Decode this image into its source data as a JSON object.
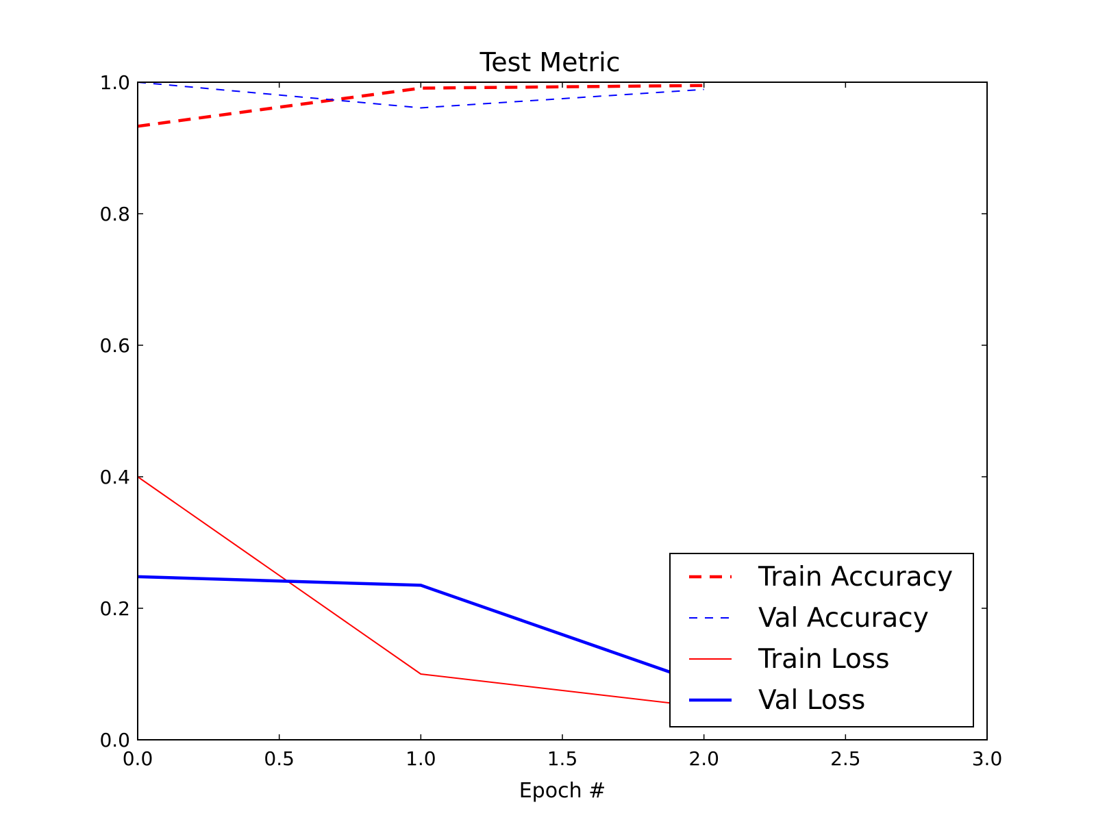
{
  "chart_data": {
    "type": "line",
    "title": "Test Metric",
    "xlabel": "Epoch #",
    "ylabel": "",
    "xlim": [
      0.0,
      3.0
    ],
    "ylim": [
      0.0,
      1.0
    ],
    "xticks": [
      "0.0",
      "0.5",
      "1.0",
      "1.5",
      "2.0",
      "2.5",
      "3.0"
    ],
    "yticks": [
      "0.0",
      "0.2",
      "0.4",
      "0.6",
      "0.8",
      "1.0"
    ],
    "grid": false,
    "legend_position": "lower-right",
    "x": [
      0,
      1,
      2
    ],
    "series": [
      {
        "name": "Train Accuracy",
        "values": [
          0.933,
          0.991,
          0.995
        ],
        "color": "#ff0000",
        "style": "dashed",
        "weight": "thick"
      },
      {
        "name": "Val Accuracy",
        "values": [
          1.0,
          0.961,
          0.989
        ],
        "color": "#0000ff",
        "style": "dashed",
        "weight": "thin"
      },
      {
        "name": "Train Loss",
        "values": [
          0.4,
          0.1,
          0.05
        ],
        "color": "#ff0000",
        "style": "solid",
        "weight": "thin"
      },
      {
        "name": "Val Loss",
        "values": [
          0.248,
          0.235,
          0.085
        ],
        "color": "#0000ff",
        "style": "solid",
        "weight": "thick"
      }
    ]
  }
}
